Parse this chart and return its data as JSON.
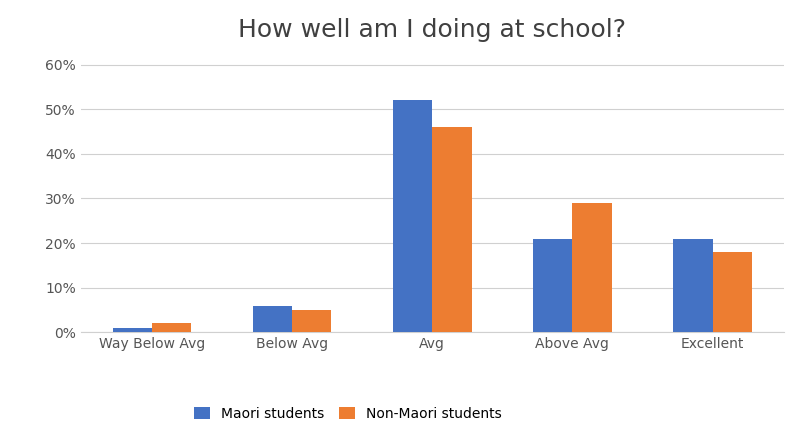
{
  "title": "How well am I doing at school?",
  "categories": [
    "Way Below Avg",
    "Below Avg",
    "Avg",
    "Above Avg",
    "Excellent"
  ],
  "maori": [
    1,
    6,
    52,
    21,
    21
  ],
  "non_maori": [
    2,
    5,
    46,
    29,
    18
  ],
  "maori_label": "Maori students",
  "non_maori_label": "Non-Maori students",
  "maori_color": "#4472C4",
  "non_maori_color": "#ED7D31",
  "ylim": [
    0,
    63
  ],
  "yticks": [
    0,
    10,
    20,
    30,
    40,
    50,
    60
  ],
  "background_color": "#ffffff",
  "grid_color": "#d0d0d0",
  "title_fontsize": 18,
  "tick_fontsize": 10,
  "legend_fontsize": 10,
  "bar_width": 0.28
}
